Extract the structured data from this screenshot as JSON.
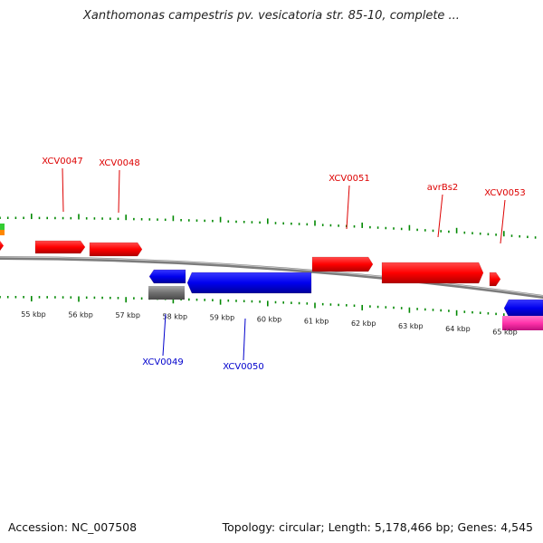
{
  "title": "Xanthomonas campestris pv. vesicatoria str. 85-10, complete ...",
  "footer": {
    "accession": "Accession: NC_007508",
    "stats": "Topology: circular; Length: 5,178,466 bp; Genes: 4,545"
  },
  "colors": {
    "forward_gene": "#ff0000",
    "reverse_gene": "#0000ee",
    "forward_label": "#dd0000",
    "reverse_label": "#0000cc",
    "backbone": "#808080",
    "ticks": "#008800",
    "pseudo_gene": "#707070",
    "rna_gene": "#ff33aa",
    "neighbor_green": "#33cc33",
    "neighbor_orange": "#ff8800"
  },
  "ruler": {
    "unit": "kbp",
    "labels": [
      "55 kbp",
      "56 kbp",
      "57 kbp",
      "58 kbp",
      "59 kbp",
      "60 kbp",
      "61 kbp",
      "62 kbp",
      "63 kbp",
      "64 kbp",
      "65 kbp"
    ]
  },
  "forward_genes": [
    {
      "label": "XCV0047"
    },
    {
      "label": "XCV0048"
    },
    {
      "label": "XCV0051"
    },
    {
      "label": "avrBs2"
    },
    {
      "label": "XCV0053"
    }
  ],
  "reverse_genes": [
    {
      "label": "XCV0049"
    },
    {
      "label": "XCV0050"
    }
  ]
}
